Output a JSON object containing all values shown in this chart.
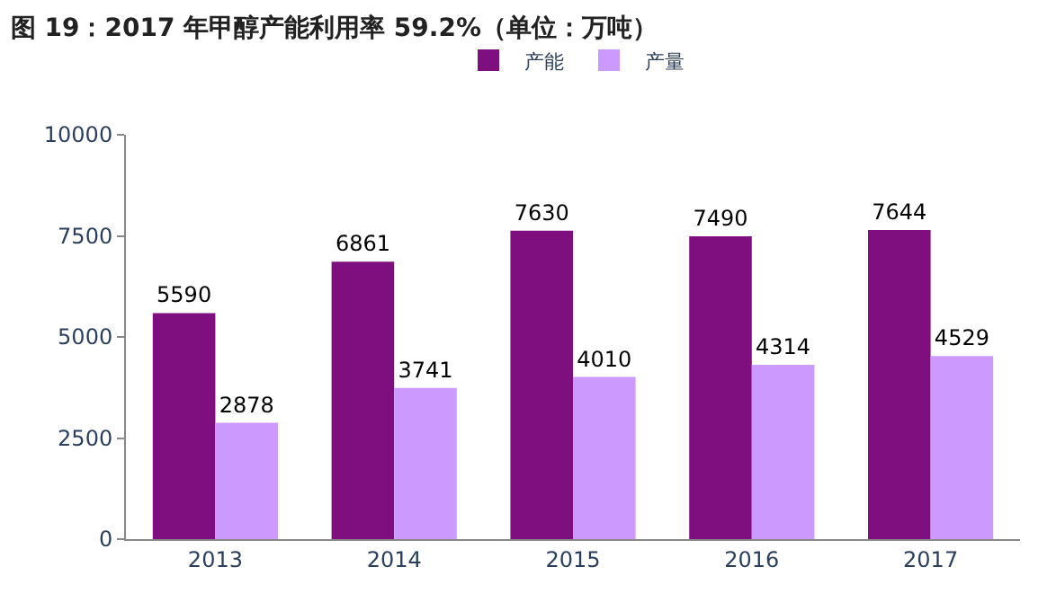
{
  "chart_data": {
    "type": "bar",
    "title": "图 19：2017 年甲醇产能利用率 59.2%（单位：万吨）",
    "categories": [
      "2013",
      "2014",
      "2015",
      "2016",
      "2017"
    ],
    "series": [
      {
        "name": "产能",
        "color": "#7f0f7e",
        "values": [
          5590,
          6861,
          7630,
          7490,
          7644
        ]
      },
      {
        "name": "产量",
        "color": "#cc99ff",
        "values": [
          2878,
          3741,
          4010,
          4314,
          4529
        ]
      }
    ],
    "ylim": [
      0,
      10000
    ],
    "yticks": [
      0,
      2500,
      5000,
      7500,
      10000
    ],
    "data_labels": true,
    "legend": "top"
  }
}
